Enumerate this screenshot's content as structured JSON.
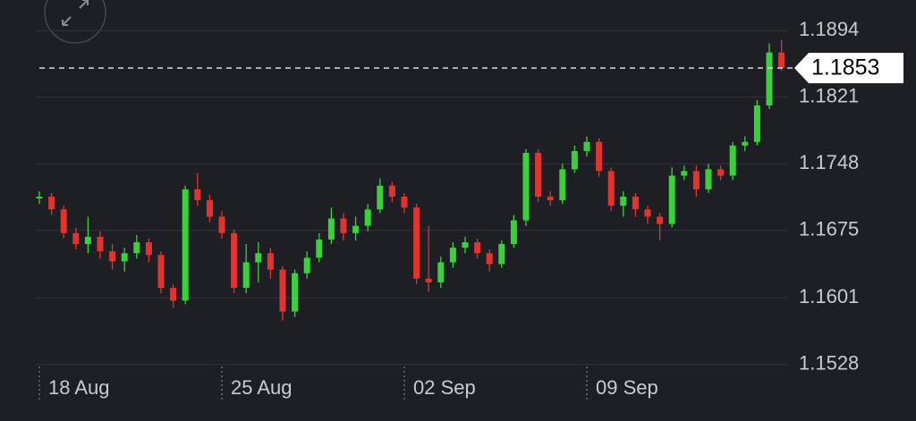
{
  "chart_data": {
    "type": "candlestick",
    "categories": [
      "18 Aug",
      null,
      null,
      null,
      null,
      null,
      null,
      null,
      null,
      null,
      null,
      null,
      null,
      null,
      null,
      "25 Aug",
      null,
      null,
      null,
      null,
      null,
      null,
      null,
      null,
      null,
      null,
      null,
      null,
      null,
      null,
      "02 Sep",
      null,
      null,
      null,
      null,
      null,
      null,
      null,
      null,
      null,
      null,
      null,
      null,
      null,
      null,
      "09 Sep",
      null,
      null,
      null,
      null,
      null,
      null,
      null,
      null,
      null,
      null,
      null,
      null,
      null,
      null,
      null,
      null
    ],
    "open": [
      1.171,
      1.1712,
      1.1698,
      1.1672,
      1.166,
      1.1668,
      1.1652,
      1.1641,
      1.165,
      1.1662,
      1.1648,
      1.1612,
      1.1598,
      1.172,
      1.1708,
      1.169,
      1.1672,
      1.1612,
      1.164,
      1.165,
      1.1632,
      1.1586,
      1.1628,
      1.1645,
      1.1665,
      1.1688,
      1.1672,
      1.168,
      1.1698,
      1.1724,
      1.1712,
      1.17,
      1.1622,
      1.1618,
      1.164,
      1.1656,
      1.1662,
      1.165,
      1.1638,
      1.166,
      1.1686,
      1.176,
      1.1712,
      1.1708,
      1.1742,
      1.1762,
      1.1772,
      1.174,
      1.1702,
      1.1712,
      1.1698,
      1.169,
      1.1682,
      1.1735,
      1.174,
      1.172,
      1.1742,
      1.1735,
      1.1768,
      1.1772,
      1.1812,
      1.187
    ],
    "high": [
      1.1718,
      1.1716,
      1.1702,
      1.1678,
      1.169,
      1.1674,
      1.166,
      1.1656,
      1.167,
      1.1666,
      1.1652,
      1.1616,
      1.1724,
      1.1738,
      1.1714,
      1.1696,
      1.1676,
      1.166,
      1.1662,
      1.1656,
      1.1636,
      1.1632,
      1.1652,
      1.1672,
      1.17,
      1.1694,
      1.169,
      1.1704,
      1.1732,
      1.1728,
      1.1716,
      1.1704,
      1.168,
      1.1646,
      1.1662,
      1.1668,
      1.1666,
      1.1654,
      1.1664,
      1.1692,
      1.1764,
      1.1764,
      1.1718,
      1.1748,
      1.1768,
      1.1778,
      1.1776,
      1.1744,
      1.1718,
      1.1716,
      1.1702,
      1.1694,
      1.1744,
      1.1746,
      1.1746,
      1.1748,
      1.1746,
      1.1772,
      1.1778,
      1.1818,
      1.188,
      1.1884
    ],
    "low": [
      1.1704,
      1.1692,
      1.1666,
      1.1654,
      1.165,
      1.1644,
      1.1632,
      1.163,
      1.1644,
      1.164,
      1.1606,
      1.159,
      1.1594,
      1.1702,
      1.1684,
      1.1666,
      1.1606,
      1.1606,
      1.1618,
      1.1622,
      1.1576,
      1.158,
      1.1622,
      1.164,
      1.166,
      1.1664,
      1.1664,
      1.1674,
      1.1694,
      1.1706,
      1.1694,
      1.1616,
      1.1608,
      1.1612,
      1.1634,
      1.165,
      1.1644,
      1.163,
      1.1634,
      1.1656,
      1.168,
      1.1706,
      1.1702,
      1.1704,
      1.1738,
      1.1756,
      1.1734,
      1.1696,
      1.169,
      1.169,
      1.1682,
      1.1664,
      1.1678,
      1.173,
      1.1712,
      1.1716,
      1.173,
      1.173,
      1.1762,
      1.1768,
      1.1808,
      1.185
    ],
    "close": [
      1.1712,
      1.1698,
      1.1672,
      1.166,
      1.1668,
      1.1652,
      1.1641,
      1.165,
      1.1662,
      1.1648,
      1.1612,
      1.1598,
      1.172,
      1.1708,
      1.169,
      1.1672,
      1.1612,
      1.164,
      1.165,
      1.1632,
      1.1586,
      1.1628,
      1.1645,
      1.1665,
      1.1688,
      1.1672,
      1.168,
      1.1698,
      1.1724,
      1.1712,
      1.17,
      1.1622,
      1.1618,
      1.164,
      1.1656,
      1.1662,
      1.165,
      1.1638,
      1.166,
      1.1686,
      1.176,
      1.1712,
      1.1708,
      1.1742,
      1.1762,
      1.1772,
      1.174,
      1.1702,
      1.1712,
      1.1698,
      1.169,
      1.1682,
      1.1735,
      1.174,
      1.172,
      1.1742,
      1.1735,
      1.1768,
      1.1772,
      1.1812,
      1.187,
      1.1853
    ],
    "up_color": "#3ad13a",
    "down_color": "#e2342f",
    "ylim": [
      1.1514,
      1.1908
    ],
    "yticks": [
      1.1528,
      1.1601,
      1.1675,
      1.1748,
      1.1821,
      1.1894
    ],
    "grid": true,
    "last_price": 1.1853
  }
}
